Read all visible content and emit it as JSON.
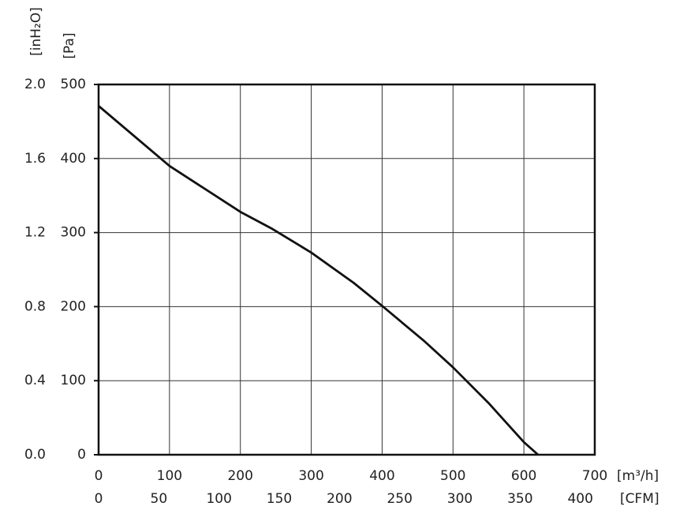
{
  "chart_data": {
    "type": "line",
    "x": [
      0,
      100,
      200,
      245,
      300,
      360,
      400,
      460,
      500,
      550,
      600,
      620
    ],
    "series": [
      {
        "color": "#111111",
        "values": [
          471,
          390,
          328,
          305,
          273,
          232,
          201,
          153,
          118,
          70,
          17,
          0
        ]
      }
    ],
    "xlim": [
      0,
      700
    ],
    "xticks": [
      0,
      100,
      200,
      300,
      400,
      500,
      600,
      700
    ],
    "ylim": [
      0,
      500
    ],
    "yticks": [
      0,
      100,
      200,
      300,
      400,
      500
    ],
    "y2lim": [
      0,
      2.0
    ],
    "y2ticks": [
      {
        "value": 0,
        "label": "0.0"
      },
      0.4,
      0.8,
      1.2,
      1.6,
      {
        "value": 2,
        "label": "2.0"
      }
    ],
    "x2lim": [
      0,
      412
    ],
    "x2ticks": [
      0,
      50,
      100,
      150,
      200,
      250,
      300,
      350,
      400
    ],
    "xlabel": "[m³/h]",
    "x2label": "[CFM]",
    "ylabel": "[Pa]",
    "y2label": "[inH₂O]",
    "grid": true
  }
}
